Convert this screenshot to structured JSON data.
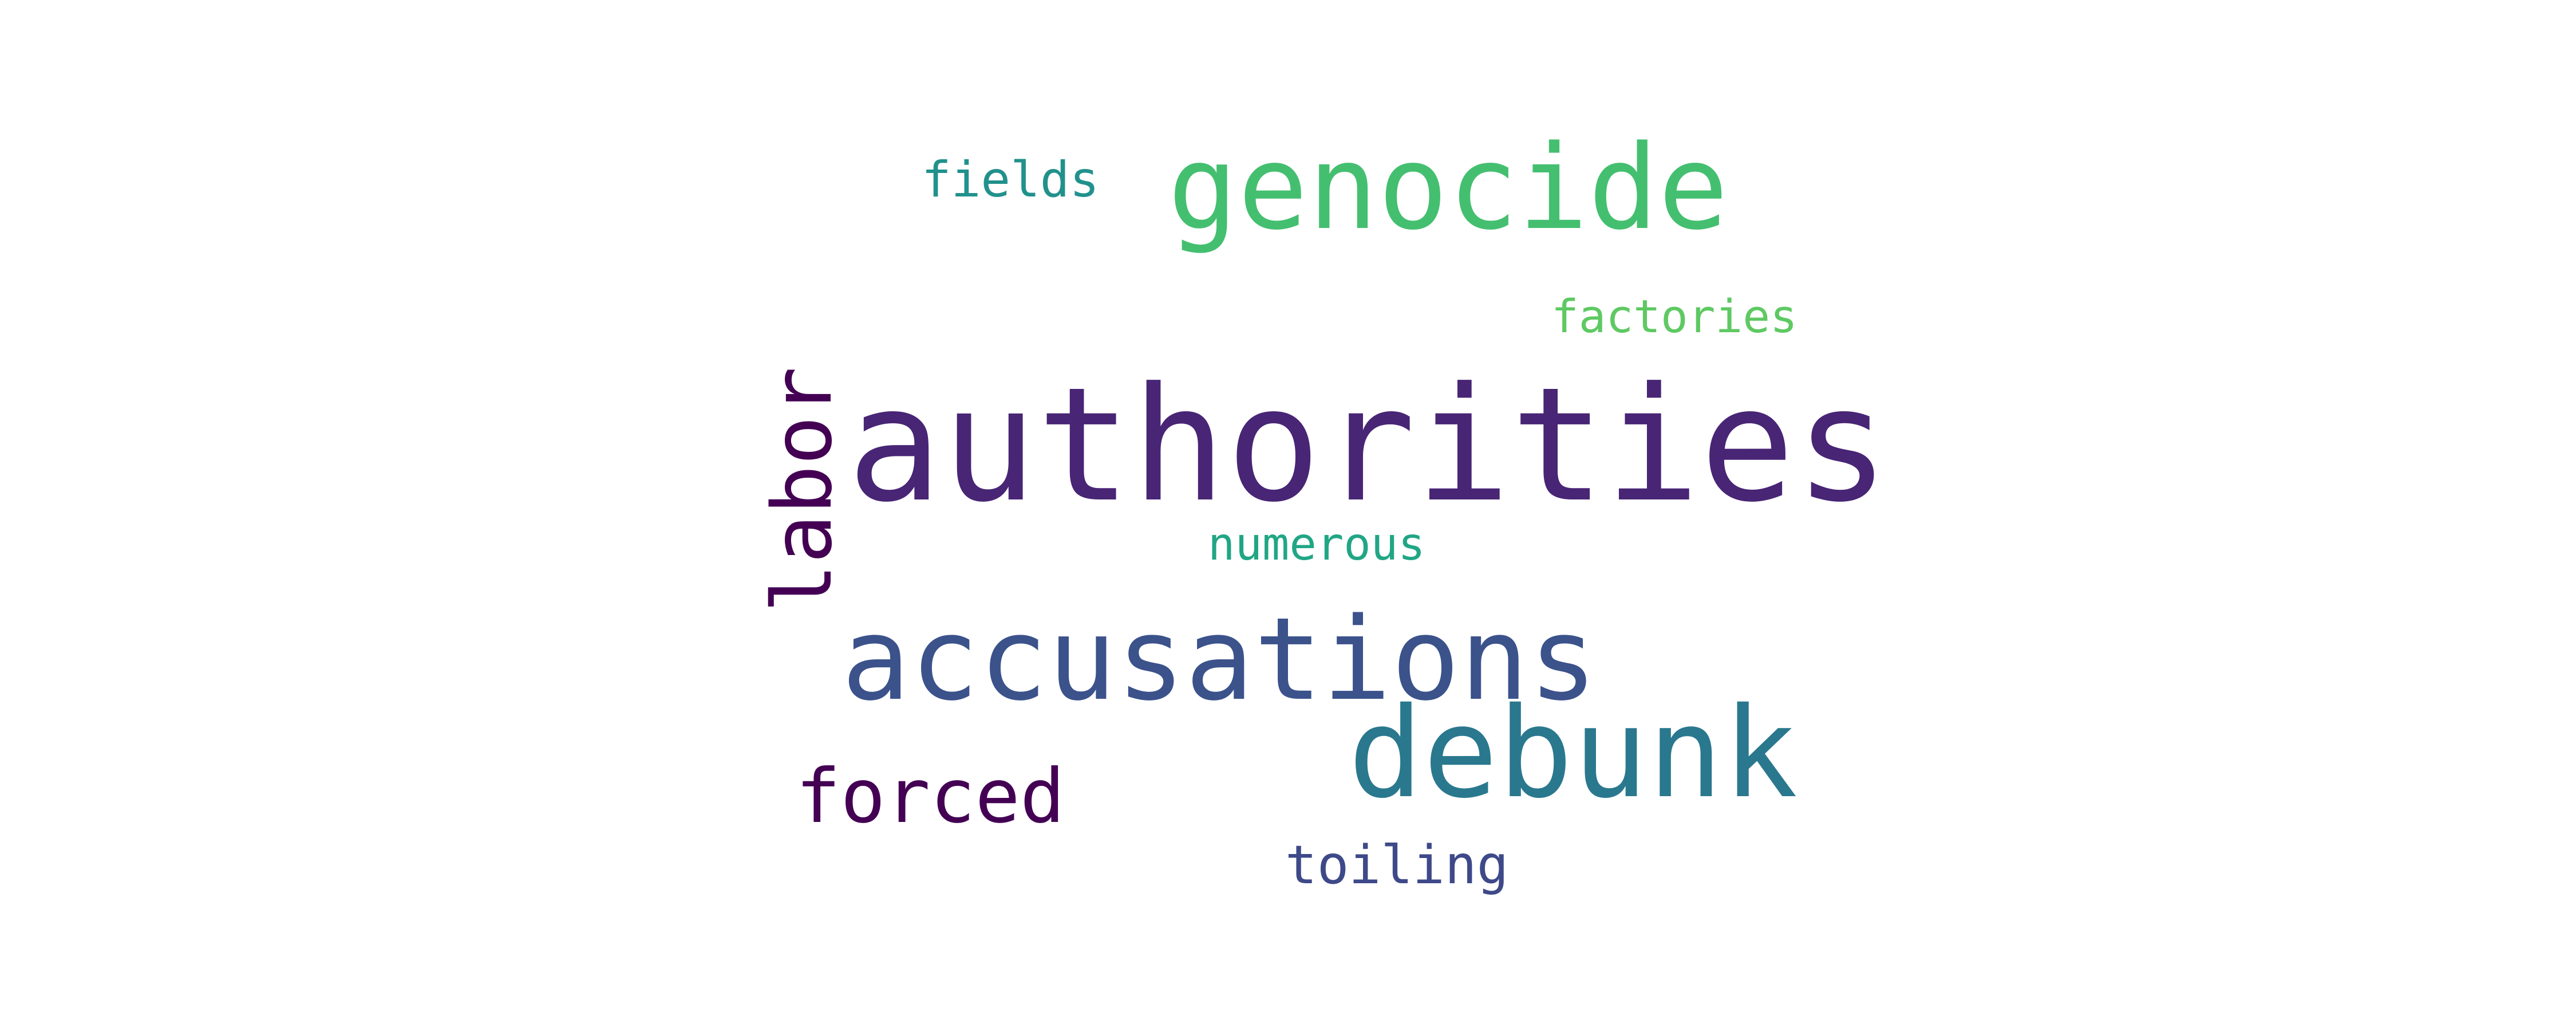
{
  "words": [
    {
      "id": "authorities",
      "text": "authorities",
      "color": "#482575"
    },
    {
      "id": "genocide",
      "text": "genocide",
      "color": "#44bf70"
    },
    {
      "id": "accusations",
      "text": "accusations",
      "color": "#3b528b"
    },
    {
      "id": "debunk",
      "text": "debunk",
      "color": "#2a788e"
    },
    {
      "id": "labor",
      "text": "labor",
      "color": "#440154"
    },
    {
      "id": "forced",
      "text": "forced",
      "color": "#440154"
    },
    {
      "id": "fields",
      "text": "fields",
      "color": "#21918c"
    },
    {
      "id": "factories",
      "text": "factories",
      "color": "#5ec962"
    },
    {
      "id": "numerous",
      "text": "numerous",
      "color": "#21a685"
    },
    {
      "id": "toiling",
      "text": "toiling",
      "color": "#3e4989"
    }
  ]
}
